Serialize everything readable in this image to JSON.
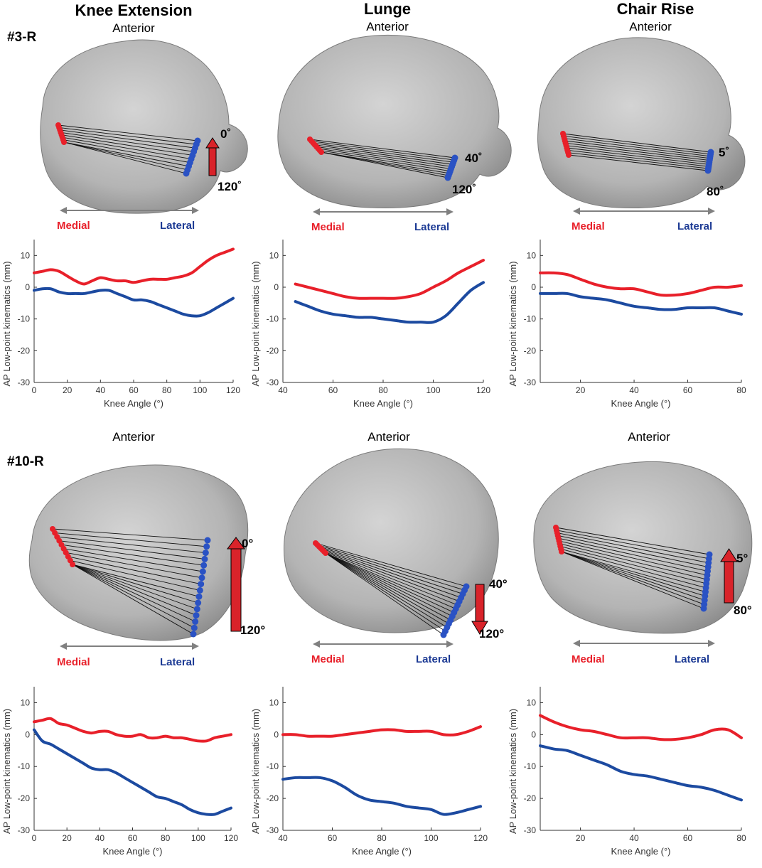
{
  "columns": [
    {
      "title": "Knee Extension",
      "anterior": "Anterior"
    },
    {
      "title": "Lunge",
      "anterior": "Anterior"
    },
    {
      "title": "Chair Rise",
      "anterior": "Anterior"
    }
  ],
  "rows": [
    {
      "subject": "#3-R"
    },
    {
      "subject": "#10-R"
    }
  ],
  "side_labels": {
    "medial": "Medial",
    "lateral": "Lateral"
  },
  "angle_labels": [
    [
      "0˚",
      "120˚"
    ],
    [
      "40˚",
      "120˚"
    ],
    [
      "5˚",
      "80˚"
    ],
    [
      "0°",
      "120°"
    ],
    [
      "40°",
      "120°"
    ],
    [
      "5°",
      "80°"
    ]
  ],
  "colors": {
    "medial": "#e8202a",
    "lateral": "#1c4aa0",
    "arrow": "#d9232a",
    "tibia": "#b8b8b8"
  },
  "icons": [
    "tibia-surface-image",
    "flexion-direction-arrow"
  ],
  "chart_data": [
    {
      "type": "line",
      "title": "#3-R Knee Extension",
      "xlabel": "Knee Angle (°)",
      "ylabel": "AP Low-point kinematics (mm)",
      "xlim": [
        0,
        120
      ],
      "ylim": [
        -30,
        15
      ],
      "xticks": [
        0,
        20,
        40,
        60,
        80,
        100,
        120
      ],
      "yticks": [
        10,
        0,
        -10,
        -20,
        -30
      ],
      "series": [
        {
          "name": "Medial",
          "x": [
            0,
            5,
            10,
            15,
            20,
            25,
            30,
            35,
            40,
            45,
            50,
            55,
            60,
            65,
            70,
            75,
            80,
            85,
            90,
            95,
            100,
            105,
            110,
            115,
            120
          ],
          "values": [
            4.5,
            5,
            5.5,
            5,
            3.5,
            2,
            1,
            2,
            3,
            2.5,
            2,
            2,
            1.5,
            2,
            2.5,
            2.5,
            2.5,
            3,
            3.5,
            4.5,
            6.5,
            8.5,
            10,
            11,
            12
          ]
        },
        {
          "name": "Lateral",
          "x": [
            0,
            5,
            10,
            15,
            20,
            25,
            30,
            35,
            40,
            45,
            50,
            55,
            60,
            65,
            70,
            75,
            80,
            85,
            90,
            95,
            100,
            105,
            110,
            115,
            120
          ],
          "values": [
            -1,
            -0.5,
            -0.5,
            -1.5,
            -2,
            -2,
            -2,
            -1.5,
            -1,
            -1,
            -2,
            -3,
            -4,
            -4,
            -4.5,
            -5.5,
            -6.5,
            -7.5,
            -8.5,
            -9,
            -9,
            -8,
            -6.5,
            -5,
            -3.5
          ]
        }
      ]
    },
    {
      "type": "line",
      "title": "#3-R Lunge",
      "xlabel": "Knee Angle (°)",
      "ylabel": "AP Low-point kinematics (mm)",
      "xlim": [
        40,
        120
      ],
      "ylim": [
        -30,
        15
      ],
      "xticks": [
        40,
        60,
        80,
        100,
        120
      ],
      "yticks": [
        10,
        0,
        -10,
        -20,
        -30
      ],
      "series": [
        {
          "name": "Medial",
          "x": [
            45,
            50,
            55,
            60,
            65,
            70,
            75,
            80,
            85,
            90,
            95,
            100,
            105,
            110,
            115,
            120
          ],
          "values": [
            1,
            0,
            -1,
            -2,
            -3,
            -3.5,
            -3.5,
            -3.5,
            -3.5,
            -3,
            -2,
            0,
            2,
            4.5,
            6.5,
            8.5
          ]
        },
        {
          "name": "Lateral",
          "x": [
            45,
            50,
            55,
            60,
            65,
            70,
            75,
            80,
            85,
            90,
            95,
            100,
            105,
            110,
            115,
            120
          ],
          "values": [
            -4.5,
            -6,
            -7.5,
            -8.5,
            -9,
            -9.5,
            -9.5,
            -10,
            -10.5,
            -11,
            -11,
            -11,
            -9,
            -5,
            -1,
            1.5
          ]
        }
      ]
    },
    {
      "type": "line",
      "title": "#3-R Chair Rise",
      "xlabel": "Knee Angle (°)",
      "ylabel": "AP Low-point kinematics (mm)",
      "xlim": [
        5,
        80
      ],
      "ylim": [
        -30,
        15
      ],
      "xticks": [
        20,
        40,
        60,
        80
      ],
      "yticks": [
        10,
        0,
        -10,
        -20,
        -30
      ],
      "series": [
        {
          "name": "Medial",
          "x": [
            5,
            10,
            15,
            20,
            25,
            30,
            35,
            40,
            45,
            50,
            55,
            60,
            65,
            70,
            75,
            80
          ],
          "values": [
            4.5,
            4.5,
            4,
            2.5,
            1,
            0,
            -0.5,
            -0.5,
            -1.5,
            -2.5,
            -2.5,
            -2,
            -1,
            0,
            0,
            0.5
          ]
        },
        {
          "name": "Lateral",
          "x": [
            5,
            10,
            15,
            20,
            25,
            30,
            35,
            40,
            45,
            50,
            55,
            60,
            65,
            70,
            75,
            80
          ],
          "values": [
            -2,
            -2,
            -2,
            -3,
            -3.5,
            -4,
            -5,
            -6,
            -6.5,
            -7,
            -7,
            -6.5,
            -6.5,
            -6.5,
            -7.5,
            -8.5
          ]
        }
      ]
    },
    {
      "type": "line",
      "title": "#10-R Knee Extension",
      "xlabel": "Knee Angle (°)",
      "ylabel": "AP Low-point kinematics (mm)",
      "xlim": [
        0,
        120
      ],
      "ylim": [
        -30,
        15
      ],
      "xticks": [
        0,
        20,
        40,
        60,
        80,
        100,
        120
      ],
      "yticks": [
        10,
        0,
        -10,
        -20,
        -30
      ],
      "series": [
        {
          "name": "Medial",
          "x": [
            0,
            5,
            10,
            15,
            20,
            25,
            30,
            35,
            40,
            45,
            50,
            55,
            60,
            65,
            70,
            75,
            80,
            85,
            90,
            95,
            100,
            105,
            110,
            115,
            120
          ],
          "values": [
            4,
            4.5,
            5,
            3.5,
            3,
            2,
            1,
            0.5,
            1,
            1,
            0,
            -0.5,
            -0.5,
            0,
            -1,
            -1,
            -0.5,
            -1,
            -1,
            -1.5,
            -2,
            -2,
            -1,
            -0.5,
            0
          ]
        },
        {
          "name": "Lateral",
          "x": [
            0,
            5,
            10,
            15,
            20,
            25,
            30,
            35,
            40,
            45,
            50,
            55,
            60,
            65,
            70,
            75,
            80,
            85,
            90,
            95,
            100,
            105,
            110,
            115,
            120
          ],
          "values": [
            1.5,
            -2,
            -3,
            -4.5,
            -6,
            -7.5,
            -9,
            -10.5,
            -11,
            -11,
            -12,
            -13.5,
            -15,
            -16.5,
            -18,
            -19.5,
            -20,
            -21,
            -22,
            -23.5,
            -24.5,
            -25,
            -25,
            -24,
            -23
          ]
        }
      ]
    },
    {
      "type": "line",
      "title": "#10-R Lunge",
      "xlabel": "Knee Angle (°)",
      "ylabel": "AP Low-point kinematics (mm)",
      "xlim": [
        40,
        120
      ],
      "ylim": [
        -30,
        15
      ],
      "xticks": [
        40,
        60,
        80,
        100,
        120
      ],
      "yticks": [
        10,
        0,
        -10,
        -20,
        -30
      ],
      "series": [
        {
          "name": "Medial",
          "x": [
            40,
            45,
            50,
            55,
            60,
            65,
            70,
            75,
            80,
            85,
            90,
            95,
            100,
            105,
            110,
            115,
            120
          ],
          "values": [
            0,
            0,
            -0.5,
            -0.5,
            -0.5,
            0,
            0.5,
            1,
            1.5,
            1.5,
            1,
            1,
            1,
            0,
            0,
            1,
            2.5
          ]
        },
        {
          "name": "Lateral",
          "x": [
            40,
            45,
            50,
            55,
            60,
            65,
            70,
            75,
            80,
            85,
            90,
            95,
            100,
            105,
            110,
            115,
            120
          ],
          "values": [
            -14,
            -13.5,
            -13.5,
            -13.5,
            -14.5,
            -16.5,
            -19,
            -20.5,
            -21,
            -21.5,
            -22.5,
            -23,
            -23.5,
            -25,
            -24.5,
            -23.5,
            -22.5
          ]
        }
      ]
    },
    {
      "type": "line",
      "title": "#10-R Chair Rise",
      "xlabel": "Knee Angle (°)",
      "ylabel": "AP Low-point kinematics (mm)",
      "xlim": [
        5,
        80
      ],
      "ylim": [
        -30,
        15
      ],
      "xticks": [
        20,
        40,
        60,
        80
      ],
      "yticks": [
        10,
        0,
        -10,
        -20,
        -30
      ],
      "series": [
        {
          "name": "Medial",
          "x": [
            5,
            10,
            15,
            20,
            25,
            30,
            35,
            40,
            45,
            50,
            55,
            60,
            65,
            70,
            75,
            80
          ],
          "values": [
            6,
            4,
            2.5,
            1.5,
            1,
            0,
            -1,
            -1,
            -1,
            -1.5,
            -1.5,
            -1,
            0,
            1.5,
            1.5,
            -1
          ]
        },
        {
          "name": "Lateral",
          "x": [
            5,
            10,
            15,
            20,
            25,
            30,
            35,
            40,
            45,
            50,
            55,
            60,
            65,
            70,
            75,
            80
          ],
          "values": [
            -3.5,
            -4.5,
            -5,
            -6.5,
            -8,
            -9.5,
            -11.5,
            -12.5,
            -13,
            -14,
            -15,
            -16,
            -16.5,
            -17.5,
            -19,
            -20.5
          ]
        }
      ]
    }
  ]
}
